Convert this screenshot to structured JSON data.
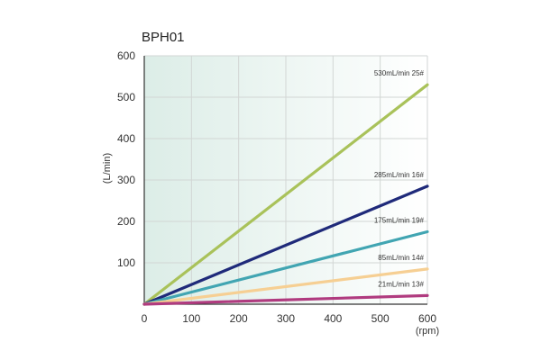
{
  "chart_data": {
    "type": "line",
    "title": "BPH01",
    "xlabel": "(rpm)",
    "ylabel": "(L/min)",
    "xlim": [
      0,
      600
    ],
    "ylim": [
      0,
      600
    ],
    "x_ticks": [
      0,
      100,
      200,
      300,
      400,
      500,
      600
    ],
    "y_ticks": [
      100,
      200,
      300,
      400,
      500,
      600
    ],
    "grid": true,
    "background": "gradient #dfeee8 to #ffffff",
    "series": [
      {
        "name": "530mL/min  25#",
        "x": [
          0,
          600
        ],
        "y": [
          0,
          530
        ],
        "color": "#a9c25a"
      },
      {
        "name": "285mL/min  16#",
        "x": [
          0,
          600
        ],
        "y": [
          0,
          285
        ],
        "color": "#1f2a7a"
      },
      {
        "name": "175mL/min  19#",
        "x": [
          0,
          600
        ],
        "y": [
          0,
          175
        ],
        "color": "#41a5b2"
      },
      {
        "name": "85mL/min  14#",
        "x": [
          0,
          600
        ],
        "y": [
          0,
          85
        ],
        "color": "#f6cf93"
      },
      {
        "name": "21mL/min  13#",
        "x": [
          0,
          600
        ],
        "y": [
          0,
          21
        ],
        "color": "#b03b7f"
      }
    ]
  }
}
